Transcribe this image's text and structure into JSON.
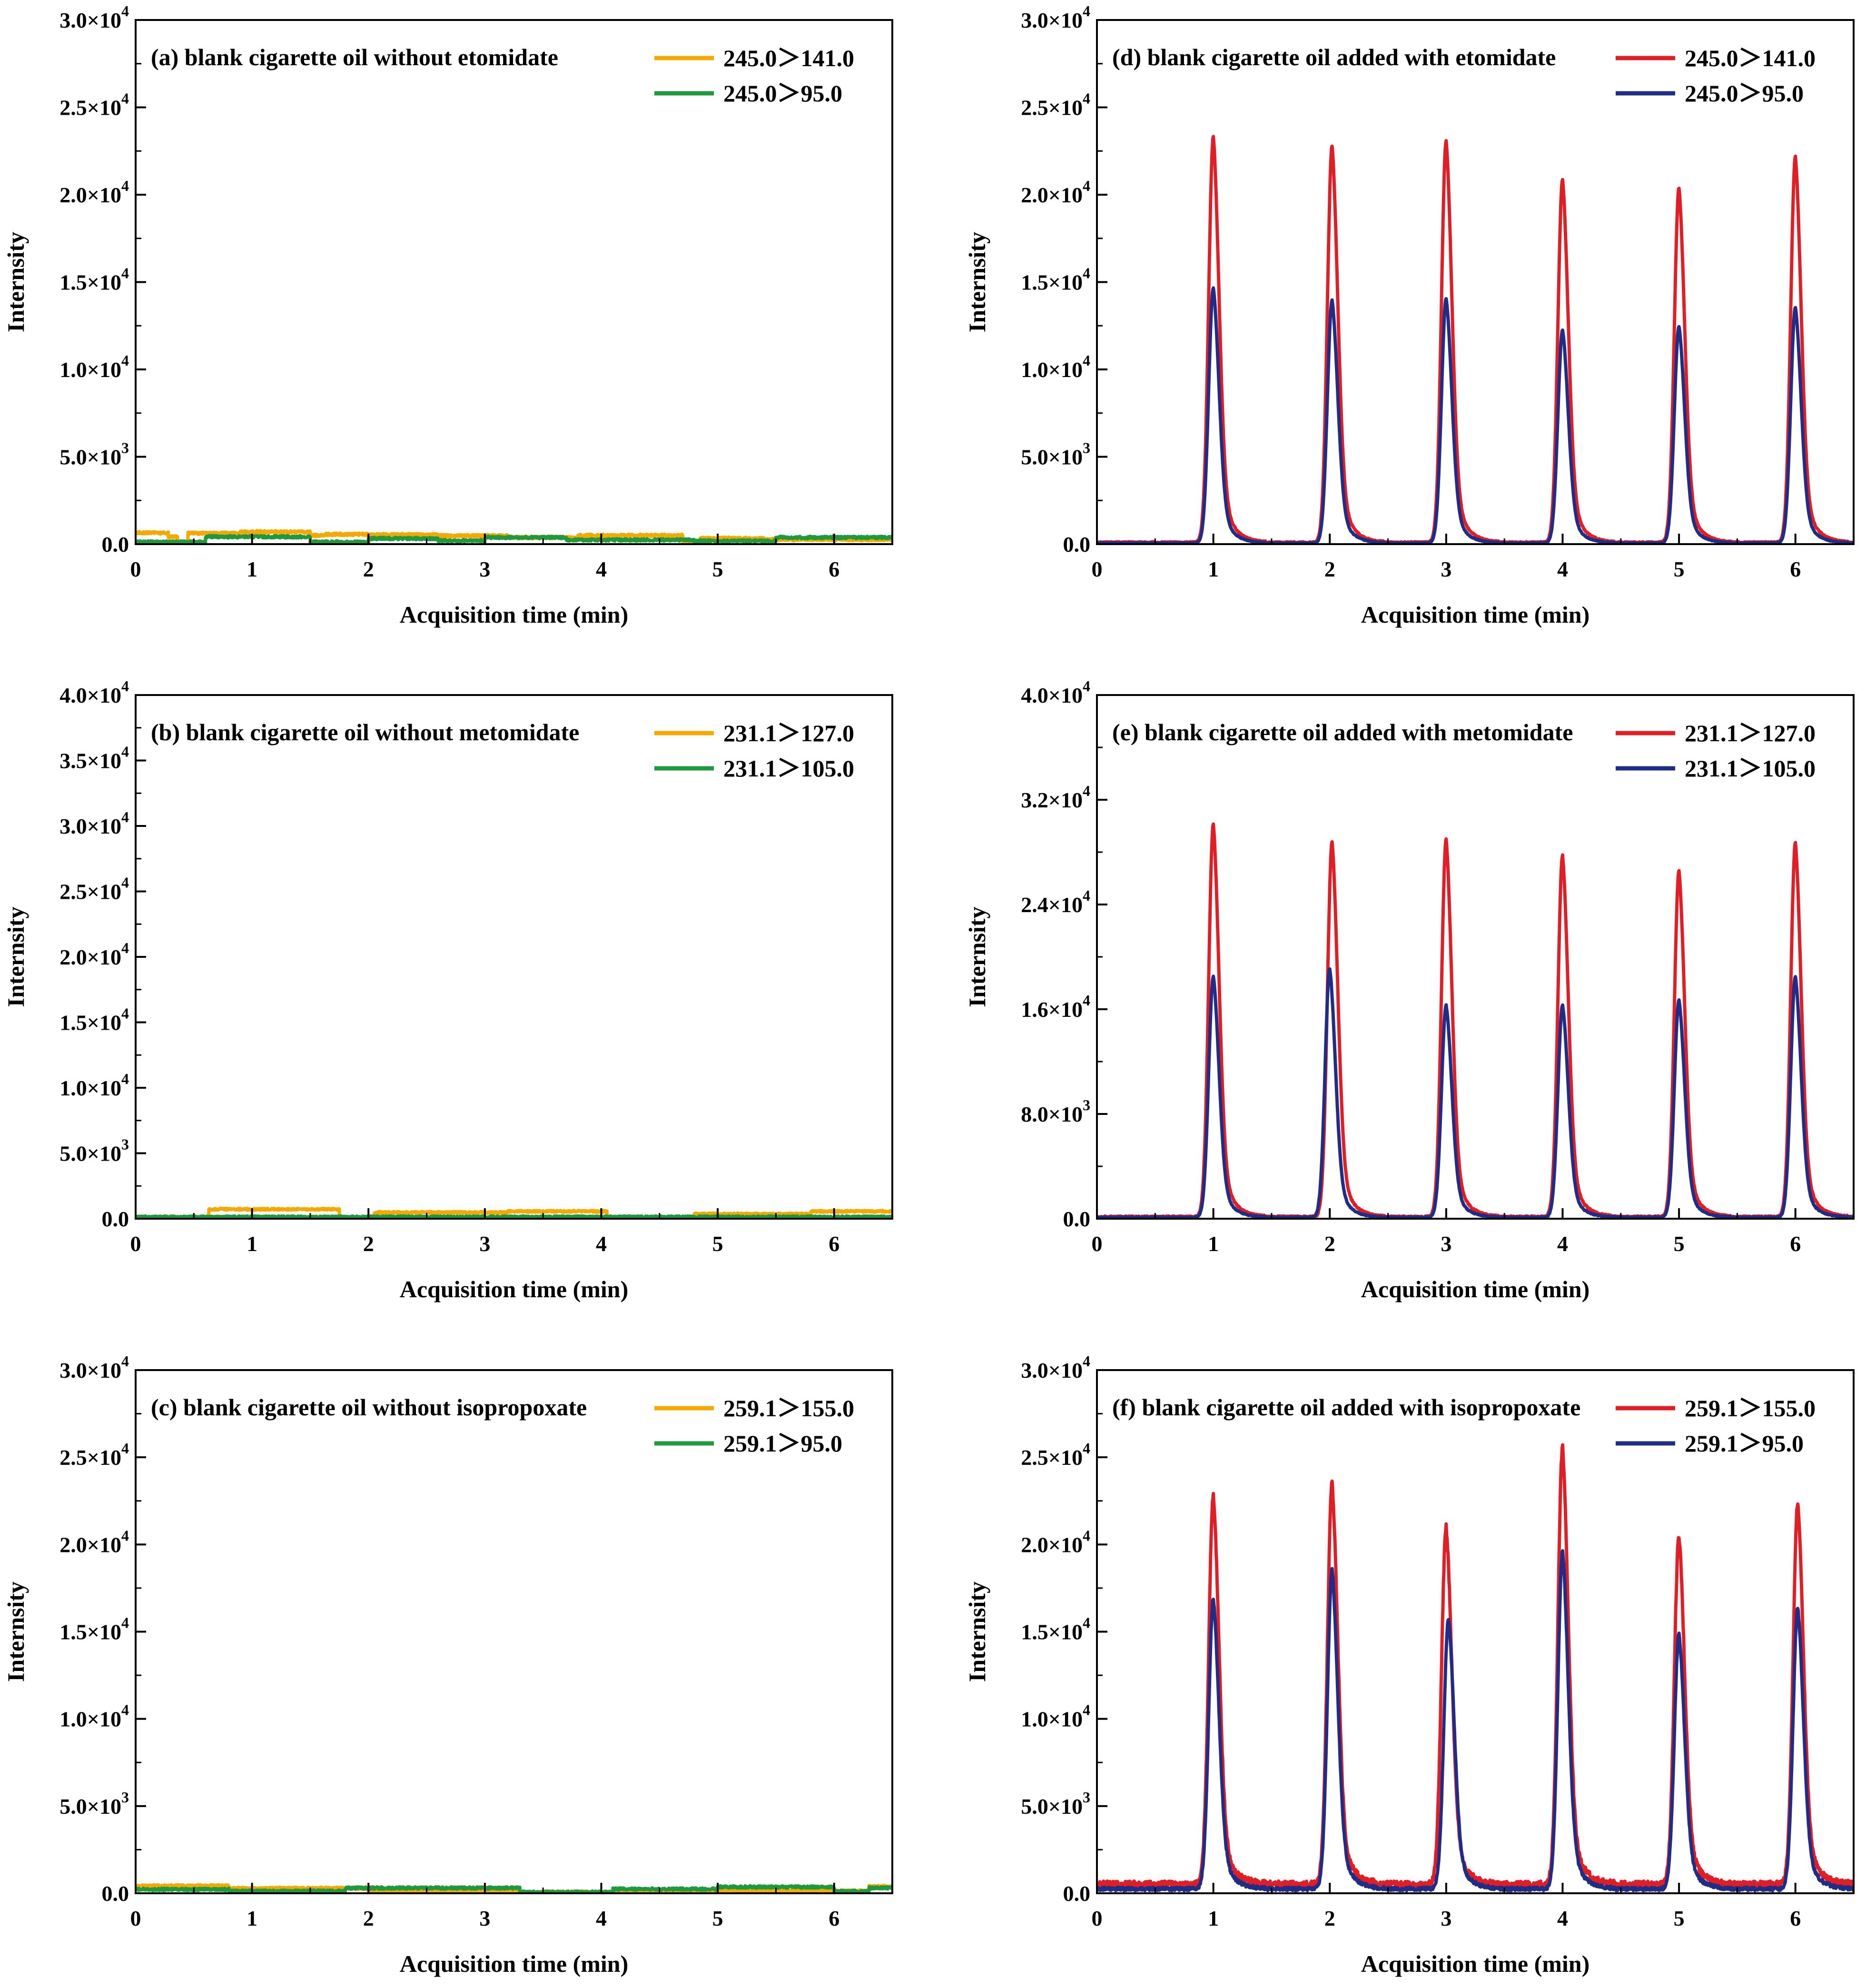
{
  "figure": {
    "background": "#ffffff",
    "axis_color": "#000000"
  },
  "chart_data": [
    {
      "id": "a",
      "type": "line",
      "title": "(a) blank cigarette oil without etomidate",
      "xlabel": "Acquisition time (min)",
      "ylabel": "Internsity",
      "xlim": [
        0,
        6.5
      ],
      "ylim": [
        0,
        30000
      ],
      "x_ticks": [
        0,
        1,
        2,
        3,
        4,
        5,
        6
      ],
      "y_ticks": [
        {
          "value": 0,
          "mant": "0.0",
          "exp": ""
        },
        {
          "value": 5000,
          "mant": "5.0×10",
          "exp": "3"
        },
        {
          "value": 10000,
          "mant": "1.0×10",
          "exp": "4"
        },
        {
          "value": 15000,
          "mant": "1.5×10",
          "exp": "4"
        },
        {
          "value": 20000,
          "mant": "2.0×10",
          "exp": "4"
        },
        {
          "value": 25000,
          "mant": "2.5×10",
          "exp": "4"
        },
        {
          "value": 30000,
          "mant": "3.0×10",
          "exp": "4"
        }
      ],
      "legend_position": "top-right",
      "series": [
        {
          "name": "245.0＞141.0",
          "color": "#f5a800",
          "kind": "blank",
          "segments": [
            [
              0,
              0.28,
              650
            ],
            [
              0.28,
              0.36,
              420
            ],
            [
              0.36,
              0.45,
              80
            ],
            [
              0.45,
              0.9,
              620
            ],
            [
              0.9,
              1.5,
              700
            ],
            [
              1.5,
              1.62,
              500
            ],
            [
              1.62,
              2.0,
              560
            ],
            [
              2.0,
              2.6,
              540
            ],
            [
              2.6,
              3.2,
              480
            ],
            [
              3.2,
              3.8,
              380
            ],
            [
              3.8,
              4.7,
              500
            ],
            [
              4.7,
              4.85,
              80
            ],
            [
              4.85,
              5.4,
              330
            ],
            [
              5.4,
              6.5,
              260
            ]
          ]
        },
        {
          "name": "245.0＞95.0",
          "color": "#1e9a3c",
          "kind": "blank",
          "segments": [
            [
              0,
              0.6,
              120
            ],
            [
              0.6,
              1.5,
              420
            ],
            [
              1.5,
              2.0,
              120
            ],
            [
              2.0,
              2.6,
              320
            ],
            [
              2.6,
              3.0,
              200
            ],
            [
              3.0,
              3.7,
              380
            ],
            [
              3.7,
              4.8,
              240
            ],
            [
              4.8,
              5.5,
              180
            ],
            [
              5.5,
              6.5,
              380
            ]
          ]
        }
      ]
    },
    {
      "id": "b",
      "type": "line",
      "title": "(b) blank cigarette oil without metomidate",
      "xlabel": "Acquisition time (min)",
      "ylabel": "Internsity",
      "xlim": [
        0,
        6.5
      ],
      "ylim": [
        0,
        40000
      ],
      "x_ticks": [
        0,
        1,
        2,
        3,
        4,
        5,
        6
      ],
      "y_ticks": [
        {
          "value": 0,
          "mant": "0.0",
          "exp": ""
        },
        {
          "value": 5000,
          "mant": "5.0×10",
          "exp": "3"
        },
        {
          "value": 10000,
          "mant": "1.0×10",
          "exp": "4"
        },
        {
          "value": 15000,
          "mant": "1.5×10",
          "exp": "4"
        },
        {
          "value": 20000,
          "mant": "2.0×10",
          "exp": "4"
        },
        {
          "value": 25000,
          "mant": "2.5×10",
          "exp": "4"
        },
        {
          "value": 30000,
          "mant": "3.0×10",
          "exp": "4"
        },
        {
          "value": 35000,
          "mant": "3.5×10",
          "exp": "4"
        },
        {
          "value": 40000,
          "mant": "4.0×10",
          "exp": "4"
        }
      ],
      "legend_position": "top-right",
      "series": [
        {
          "name": "231.1＞127.0",
          "color": "#f5a800",
          "kind": "blank",
          "segments": [
            [
              0,
              0.63,
              120
            ],
            [
              0.63,
              1.75,
              720
            ],
            [
              1.75,
              2.05,
              60
            ],
            [
              2.05,
              3.2,
              480
            ],
            [
              3.2,
              4.05,
              560
            ],
            [
              4.05,
              4.8,
              60
            ],
            [
              4.8,
              5.8,
              360
            ],
            [
              5.8,
              6.5,
              560
            ]
          ]
        },
        {
          "name": "231.1＞105.0",
          "color": "#1e9a3c",
          "kind": "blank",
          "segments": [
            [
              0,
              6.5,
              140
            ]
          ]
        }
      ]
    },
    {
      "id": "c",
      "type": "line",
      "title": "(c) blank cigarette oil without isopropoxate",
      "xlabel": "Acquisition time (min)",
      "ylabel": "Internsity",
      "xlim": [
        0,
        6.5
      ],
      "ylim": [
        0,
        30000
      ],
      "x_ticks": [
        0,
        1,
        2,
        3,
        4,
        5,
        6
      ],
      "y_ticks": [
        {
          "value": 0,
          "mant": "0.0",
          "exp": ""
        },
        {
          "value": 5000,
          "mant": "5.0×10",
          "exp": "3"
        },
        {
          "value": 10000,
          "mant": "1.0×10",
          "exp": "4"
        },
        {
          "value": 15000,
          "mant": "1.5×10",
          "exp": "4"
        },
        {
          "value": 20000,
          "mant": "2.0×10",
          "exp": "4"
        },
        {
          "value": 25000,
          "mant": "2.5×10",
          "exp": "4"
        },
        {
          "value": 30000,
          "mant": "3.0×10",
          "exp": "4"
        }
      ],
      "legend_position": "top-right",
      "series": [
        {
          "name": "259.1＞155.0",
          "color": "#f5a800",
          "kind": "blank",
          "segments": [
            [
              0,
              0.8,
              420
            ],
            [
              0.8,
              2.0,
              280
            ],
            [
              2.0,
              3.3,
              160
            ],
            [
              3.3,
              4.2,
              60
            ],
            [
              4.2,
              6.3,
              120
            ],
            [
              6.3,
              6.5,
              380
            ]
          ]
        },
        {
          "name": "259.1＞95.0",
          "color": "#1e9a3c",
          "kind": "blank",
          "segments": [
            [
              0,
              0.8,
              220
            ],
            [
              0.8,
              1.8,
              120
            ],
            [
              1.8,
              3.3,
              300
            ],
            [
              3.3,
              4.1,
              60
            ],
            [
              4.1,
              5.0,
              240
            ],
            [
              5.0,
              6.0,
              360
            ],
            [
              6.0,
              6.3,
              100
            ],
            [
              6.3,
              6.5,
              300
            ]
          ]
        }
      ]
    },
    {
      "id": "d",
      "type": "line",
      "title": "(d) blank cigarette oil added with etomidate",
      "xlabel": "Acquisition time (min)",
      "ylabel": "Internsity",
      "xlim": [
        0,
        6.5
      ],
      "ylim": [
        0,
        30000
      ],
      "x_ticks": [
        0,
        1,
        2,
        3,
        4,
        5,
        6
      ],
      "y_ticks": [
        {
          "value": 0,
          "mant": "0.0",
          "exp": ""
        },
        {
          "value": 5000,
          "mant": "5.0×10",
          "exp": "3"
        },
        {
          "value": 10000,
          "mant": "1.0×10",
          "exp": "4"
        },
        {
          "value": 15000,
          "mant": "1.5×10",
          "exp": "4"
        },
        {
          "value": 20000,
          "mant": "2.0×10",
          "exp": "4"
        },
        {
          "value": 25000,
          "mant": "2.5×10",
          "exp": "4"
        },
        {
          "value": 30000,
          "mant": "3.0×10",
          "exp": "4"
        }
      ],
      "legend_position": "top-right",
      "series": [
        {
          "name": "245.0＞141.0",
          "color": "#e01e26",
          "kind": "peaks",
          "baseline": 100,
          "peaks": [
            [
              1.0,
              23200
            ],
            [
              2.02,
              22700
            ],
            [
              3.0,
              23000
            ],
            [
              4.0,
              20800
            ],
            [
              5.0,
              20300
            ],
            [
              6.0,
              22100
            ]
          ]
        },
        {
          "name": "245.0＞95.0",
          "color": "#1f2d86",
          "kind": "peaks",
          "baseline": 60,
          "peaks": [
            [
              1.0,
              14600
            ],
            [
              2.02,
              13900
            ],
            [
              3.0,
              14000
            ],
            [
              4.0,
              12200
            ],
            [
              5.0,
              12400
            ],
            [
              6.0,
              13500
            ]
          ]
        }
      ]
    },
    {
      "id": "e",
      "type": "line",
      "title": "(e) blank cigarette oil added with metomidate",
      "xlabel": "Acquisition time (min)",
      "ylabel": "Internsity",
      "xlim": [
        0,
        6.5
      ],
      "ylim": [
        0,
        40000
      ],
      "x_ticks": [
        0,
        1,
        2,
        3,
        4,
        5,
        6
      ],
      "y_ticks": [
        {
          "value": 0,
          "mant": "0.0",
          "exp": ""
        },
        {
          "value": 8000,
          "mant": "8.0×10",
          "exp": "3"
        },
        {
          "value": 16000,
          "mant": "1.6×10",
          "exp": "4"
        },
        {
          "value": 24000,
          "mant": "2.4×10",
          "exp": "4"
        },
        {
          "value": 32000,
          "mant": "3.2×10",
          "exp": "4"
        },
        {
          "value": 40000,
          "mant": "4.0×10",
          "exp": "4"
        }
      ],
      "legend_position": "top-right",
      "series": [
        {
          "name": "231.1＞127.0",
          "color": "#e01e26",
          "kind": "peaks",
          "baseline": 150,
          "peaks": [
            [
              1.0,
              30000
            ],
            [
              2.02,
              28600
            ],
            [
              3.0,
              28800
            ],
            [
              4.0,
              27600
            ],
            [
              5.0,
              26400
            ],
            [
              6.0,
              28600
            ]
          ]
        },
        {
          "name": "231.1＞105.0",
          "color": "#1f2d86",
          "kind": "peaks",
          "baseline": 100,
          "peaks": [
            [
              1.0,
              18400
            ],
            [
              2.0,
              19000
            ],
            [
              3.0,
              16200
            ],
            [
              4.0,
              16200
            ],
            [
              5.0,
              16600
            ],
            [
              6.0,
              18400
            ]
          ]
        }
      ]
    },
    {
      "id": "f",
      "type": "line",
      "title": "(f) blank cigarette oil added with isopropoxate",
      "xlabel": "Acquisition time (min)",
      "ylabel": "Internsity",
      "xlim": [
        0,
        6.5
      ],
      "ylim": [
        0,
        30000
      ],
      "x_ticks": [
        0,
        1,
        2,
        3,
        4,
        5,
        6
      ],
      "y_ticks": [
        {
          "value": 0,
          "mant": "0.0",
          "exp": ""
        },
        {
          "value": 5000,
          "mant": "5.0×10",
          "exp": "3"
        },
        {
          "value": 10000,
          "mant": "1.0×10",
          "exp": "4"
        },
        {
          "value": 15000,
          "mant": "1.5×10",
          "exp": "4"
        },
        {
          "value": 20000,
          "mant": "2.0×10",
          "exp": "4"
        },
        {
          "value": 25000,
          "mant": "2.5×10",
          "exp": "4"
        },
        {
          "value": 30000,
          "mant": "3.0×10",
          "exp": "4"
        }
      ],
      "legend_position": "top-right",
      "series": [
        {
          "name": "259.1＞155.0",
          "color": "#e01e26",
          "kind": "peaks",
          "baseline": 500,
          "peaks": [
            [
              1.0,
              22300
            ],
            [
              2.02,
              23000
            ],
            [
              3.0,
              20500
            ],
            [
              4.0,
              25100
            ],
            [
              5.0,
              20000
            ],
            [
              6.02,
              21800
            ]
          ]
        },
        {
          "name": "259.1＞95.0",
          "color": "#1f2d86",
          "kind": "peaks",
          "baseline": 250,
          "peaks": [
            [
              1.0,
              16600
            ],
            [
              2.02,
              18300
            ],
            [
              3.02,
              15500
            ],
            [
              4.0,
              19300
            ],
            [
              5.0,
              14600
            ],
            [
              6.02,
              16100
            ]
          ]
        }
      ]
    }
  ]
}
